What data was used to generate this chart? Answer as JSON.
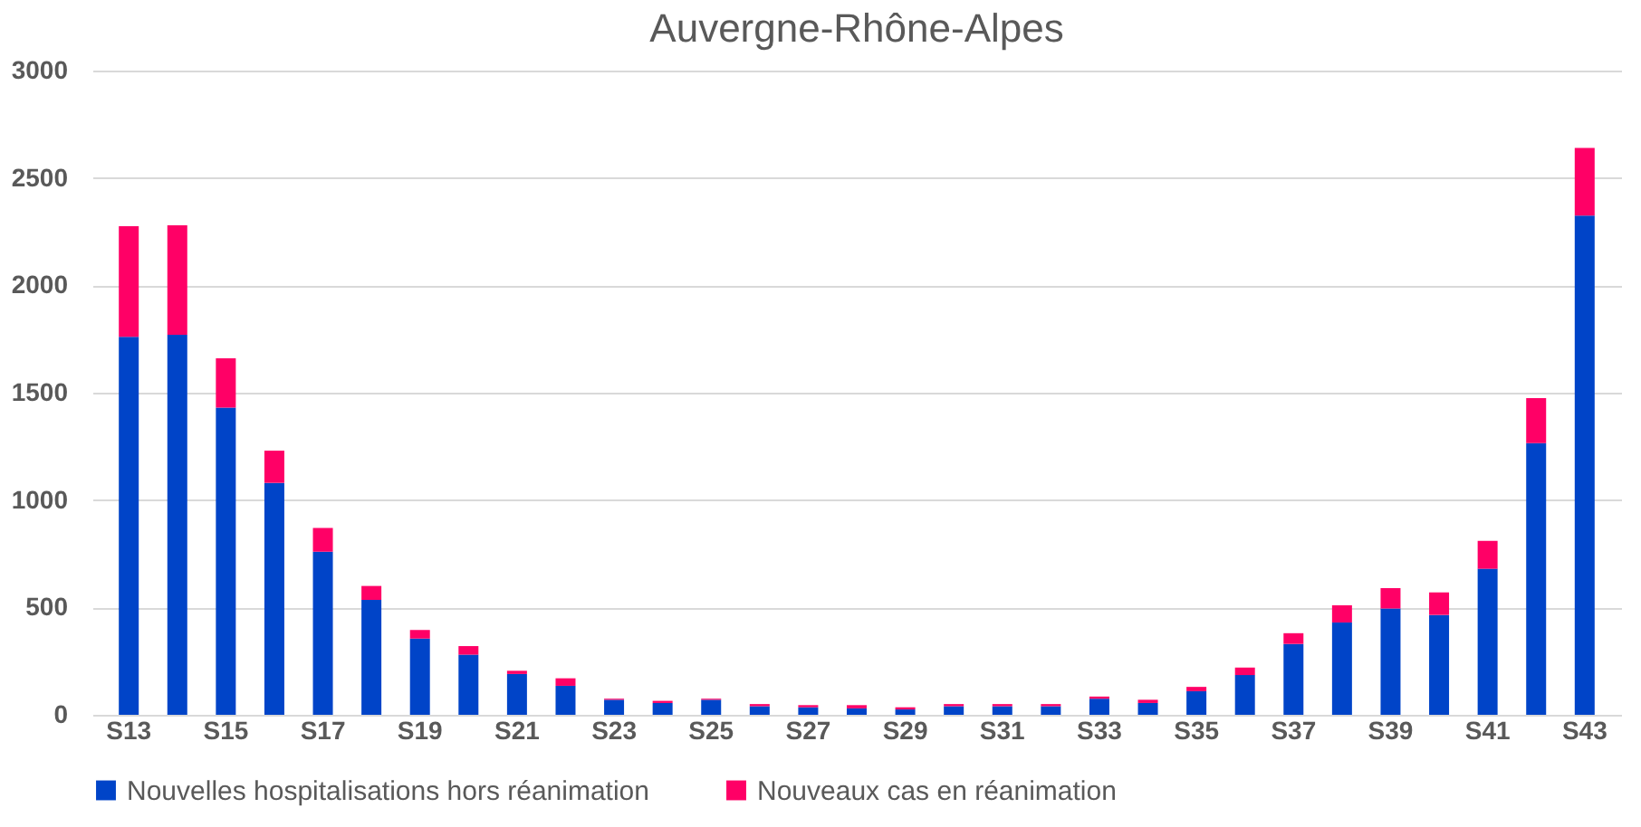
{
  "chart_data": {
    "type": "bar",
    "title": "Auvergne-Rhône-Alpes",
    "categories": [
      "S13",
      null,
      "S15",
      null,
      "S17",
      null,
      "S19",
      null,
      "S21",
      null,
      "S23",
      null,
      "S25",
      null,
      "S27",
      null,
      "S29",
      null,
      "S31",
      null,
      "S33",
      null,
      "S35",
      null,
      "S37",
      null,
      "S39",
      null,
      "S41",
      null,
      "S43"
    ],
    "stacked": true,
    "series": [
      {
        "name": "Nouvelles hospitalisations hors réanimation",
        "color": "#0044c8",
        "values": [
          1760,
          1770,
          1430,
          1080,
          760,
          535,
          355,
          280,
          190,
          135,
          70,
          55,
          70,
          40,
          35,
          30,
          25,
          40,
          40,
          40,
          75,
          55,
          110,
          185,
          330,
          430,
          495,
          465,
          680,
          1265,
          2325
        ]
      },
      {
        "name": "Nouveaux cas en réanimation",
        "color": "#ff0066",
        "values": [
          515,
          510,
          230,
          150,
          110,
          65,
          40,
          40,
          15,
          35,
          5,
          10,
          5,
          10,
          10,
          15,
          10,
          10,
          10,
          10,
          10,
          15,
          20,
          35,
          50,
          80,
          95,
          105,
          130,
          210,
          315
        ]
      }
    ],
    "ylim": [
      0,
      3000
    ],
    "yticks": [
      0,
      500,
      1000,
      1500,
      2000,
      2500,
      3000
    ],
    "grid": "y",
    "legend": "bottom"
  }
}
